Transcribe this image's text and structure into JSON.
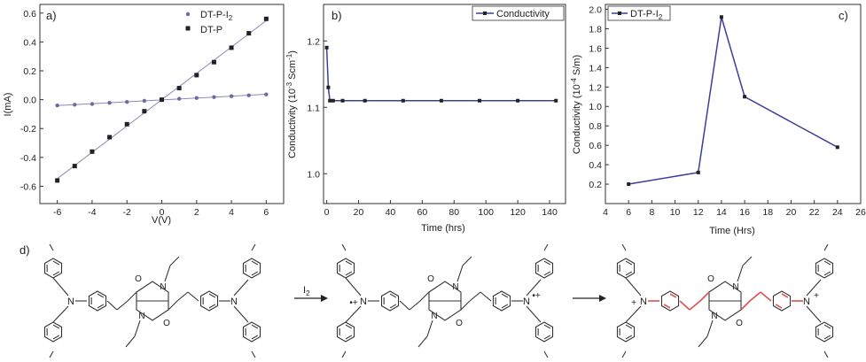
{
  "chart_data": [
    {
      "type": "scatter",
      "panel_label": "a)",
      "xlabel": "V(V)",
      "ylabel": "I(mA)",
      "xlim": [
        -7,
        7
      ],
      "ylim": [
        -0.72,
        0.66
      ],
      "xticks": [
        -6,
        -4,
        -2,
        0,
        2,
        4,
        6
      ],
      "yticks": [
        -0.6,
        -0.4,
        -0.2,
        0.0,
        0.2,
        0.4,
        0.6
      ],
      "legend_position": "top-right",
      "series": [
        {
          "name": "DT-P-I",
          "name_sub": "2",
          "marker": "circle",
          "color": "#6a6aa8",
          "x": [
            -6,
            -5,
            -4,
            -3,
            -2,
            -1,
            0,
            1,
            2,
            3,
            4,
            5,
            6
          ],
          "y": [
            -0.04,
            -0.035,
            -0.03,
            -0.022,
            -0.016,
            -0.008,
            0.0,
            0.006,
            0.012,
            0.018,
            0.024,
            0.03,
            0.036
          ]
        },
        {
          "name": "DT-P",
          "marker": "square",
          "color": "#222222",
          "x": [
            -6,
            -5,
            -4,
            -3,
            -2,
            -1,
            0,
            1,
            2,
            3,
            4,
            5,
            6
          ],
          "y": [
            -0.56,
            -0.46,
            -0.36,
            -0.26,
            -0.17,
            -0.08,
            0.0,
            0.08,
            0.17,
            0.26,
            0.36,
            0.46,
            0.56
          ]
        }
      ]
    },
    {
      "type": "line",
      "panel_label": "b)",
      "xlabel": "Time (hrs)",
      "ylabel_main": "Conductivity (10",
      "ylabel_sup1": "-3",
      "ylabel_mid": " Scm",
      "ylabel_sup2": "-1",
      "ylabel_end": ")",
      "xlim": [
        -2,
        150
      ],
      "ylim": [
        0.955,
        1.255
      ],
      "xticks": [
        0,
        20,
        40,
        60,
        80,
        100,
        120,
        140
      ],
      "yticks": [
        1.0,
        1.1,
        1.2
      ],
      "legend_position": "top-right",
      "series": [
        {
          "name": "Conductivity",
          "color": "#3b3f9a",
          "x": [
            0,
            1,
            2,
            4,
            10,
            24,
            48,
            72,
            96,
            120,
            144
          ],
          "y": [
            1.19,
            1.13,
            1.11,
            1.11,
            1.11,
            1.11,
            1.11,
            1.11,
            1.11,
            1.11,
            1.11
          ]
        }
      ]
    },
    {
      "type": "line",
      "panel_label": "c)",
      "xlabel": "Time (Hrs)",
      "ylabel_main": "Conductivity (10",
      "ylabel_sup1": "-4",
      "ylabel_end": " S/m)",
      "xlim": [
        4,
        26
      ],
      "ylim": [
        0.0,
        2.05
      ],
      "xticks": [
        4,
        6,
        8,
        10,
        12,
        14,
        16,
        18,
        20,
        22,
        24,
        26
      ],
      "yticks": [
        0.2,
        0.4,
        0.6,
        0.8,
        1.0,
        1.2,
        1.4,
        1.6,
        1.8,
        2.0
      ],
      "legend_position": "top-left",
      "series": [
        {
          "name": "DT-P-I",
          "name_sub": "2",
          "color": "#3b3f9a",
          "x": [
            6,
            12,
            14,
            16,
            24
          ],
          "y": [
            0.2,
            0.32,
            1.92,
            1.1,
            0.58
          ]
        }
      ]
    }
  ],
  "scheme": {
    "panel_label": "d)",
    "reagent": "I",
    "reagent_sub": "2",
    "atom_N": "N",
    "atom_O": "O",
    "plus": "+",
    "radical_cation": "•+"
  }
}
